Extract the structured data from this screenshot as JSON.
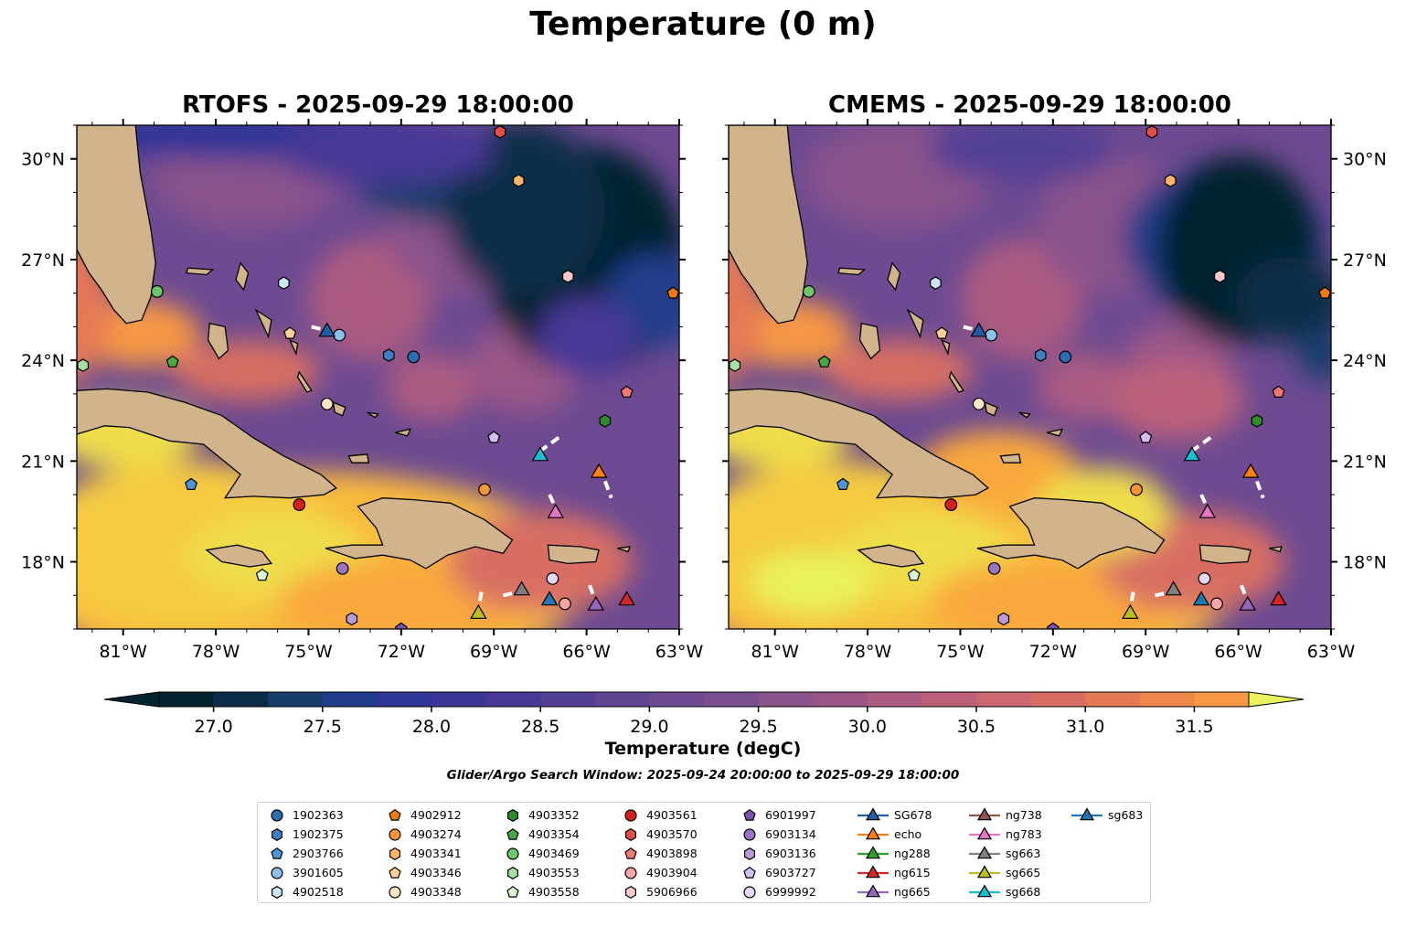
{
  "figure": {
    "title": "Temperature (0 m)",
    "search_window": "Glider/Argo Search Window: 2025-09-24 20:00:00 to 2025-09-29 18:00:00"
  },
  "chart_data": {
    "type": "heatmap",
    "variable": "Temperature",
    "depth": "0 m",
    "panels": [
      {
        "title": "RTOFS - 2025-09-29 18:00:00",
        "model": "RTOFS"
      },
      {
        "title": "CMEMS - 2025-09-29 18:00:00",
        "model": "CMEMS"
      }
    ],
    "xlim": [
      -82.5,
      -63.0
    ],
    "ylim": [
      16.0,
      31.0
    ],
    "x_ticks": [
      {
        "value": -81,
        "label": "81°W"
      },
      {
        "value": -78,
        "label": "78°W"
      },
      {
        "value": -75,
        "label": "75°W"
      },
      {
        "value": -72,
        "label": "72°W"
      },
      {
        "value": -69,
        "label": "69°W"
      },
      {
        "value": -66,
        "label": "66°W"
      },
      {
        "value": -63,
        "label": "63°W"
      }
    ],
    "y_ticks": [
      {
        "value": 30,
        "label": "30°N"
      },
      {
        "value": 27,
        "label": "27°N"
      },
      {
        "value": 24,
        "label": "24°N"
      },
      {
        "value": 21,
        "label": "21°N"
      },
      {
        "value": 18,
        "label": "18°N"
      }
    ],
    "colorbar": {
      "label": "Temperature (degC)",
      "vmin": 26.75,
      "vmax": 31.75,
      "step": 0.25,
      "extend": "both",
      "ticks": [
        {
          "value": 27.0,
          "label": "27.0"
        },
        {
          "value": 27.5,
          "label": "27.5"
        },
        {
          "value": 28.0,
          "label": "28.0"
        },
        {
          "value": 28.5,
          "label": "28.5"
        },
        {
          "value": 29.0,
          "label": "29.0"
        },
        {
          "value": 29.5,
          "label": "29.5"
        },
        {
          "value": 30.0,
          "label": "30.0"
        },
        {
          "value": 30.5,
          "label": "30.5"
        },
        {
          "value": 31.0,
          "label": "31.0"
        },
        {
          "value": 31.5,
          "label": "31.5"
        }
      ],
      "colors": [
        "#03232e",
        "#0c2d49",
        "#173d6b",
        "#203c8a",
        "#2e3596",
        "#3a3597",
        "#473896",
        "#533f94",
        "#604593",
        "#6d4a91",
        "#7a4f8f",
        "#8a538c",
        "#9a5687",
        "#ac5b81",
        "#bc607a",
        "#cc6771",
        "#d86e63",
        "#e57956",
        "#ef874b",
        "#f59745",
        "#f9a83e",
        "#f9b93c",
        "#f5cb42",
        "#efdd4c",
        "#e8f35c"
      ]
    },
    "platforms": [
      {
        "id": "1902363",
        "marker": "circle",
        "color": "#2a6db0",
        "lon": -71.6,
        "lat": 24.1
      },
      {
        "id": "1902375",
        "marker": "hexagon",
        "color": "#3f7fc4",
        "lon": -72.4,
        "lat": 24.15
      },
      {
        "id": "2903766",
        "marker": "pentagon",
        "color": "#4d93d6",
        "lon": -78.8,
        "lat": 20.3
      },
      {
        "id": "3901605",
        "marker": "circle",
        "color": "#8cbfe9",
        "lon": -74.0,
        "lat": 24.75
      },
      {
        "id": "4902518",
        "marker": "hexagon",
        "color": "#cde6f7",
        "lon": -75.8,
        "lat": 26.3
      },
      {
        "id": "4902912",
        "marker": "pentagon",
        "color": "#f07a0c",
        "lon": -63.2,
        "lat": 26.0
      },
      {
        "id": "4903274",
        "marker": "circle",
        "color": "#f7953a",
        "lon": -69.3,
        "lat": 20.15
      },
      {
        "id": "4903341",
        "marker": "hexagon",
        "color": "#fbb46a",
        "lon": -68.2,
        "lat": 29.35
      },
      {
        "id": "4903346",
        "marker": "pentagon",
        "color": "#fccf9a",
        "lon": -75.6,
        "lat": 24.8
      },
      {
        "id": "4903348",
        "marker": "circle",
        "color": "#fde5c6",
        "lon": -74.4,
        "lat": 22.7
      },
      {
        "id": "4903352",
        "marker": "hexagon",
        "color": "#2d8a2d",
        "lon": -65.4,
        "lat": 22.2
      },
      {
        "id": "4903354",
        "marker": "pentagon",
        "color": "#45aa45",
        "lon": -79.4,
        "lat": 23.95
      },
      {
        "id": "4903469",
        "marker": "circle",
        "color": "#6cc76c",
        "lon": -79.9,
        "lat": 26.05
      },
      {
        "id": "4903553",
        "marker": "hexagon",
        "color": "#a6e0a0",
        "lon": -82.3,
        "lat": 23.85
      },
      {
        "id": "4903558",
        "marker": "pentagon",
        "color": "#d8f4d0",
        "lon": -76.5,
        "lat": 17.6
      },
      {
        "id": "4903561",
        "marker": "circle",
        "color": "#d62020",
        "lon": -75.3,
        "lat": 19.7
      },
      {
        "id": "4903570",
        "marker": "hexagon",
        "color": "#e44d4d",
        "lon": -68.8,
        "lat": 30.8
      },
      {
        "id": "4903898",
        "marker": "pentagon",
        "color": "#f07878",
        "lon": -64.7,
        "lat": 23.05
      },
      {
        "id": "4903904",
        "marker": "circle",
        "color": "#f7a6a6",
        "lon": -66.7,
        "lat": 16.75
      },
      {
        "id": "5906966",
        "marker": "hexagon",
        "color": "#fccaca",
        "lon": -66.6,
        "lat": 26.5
      },
      {
        "id": "6901997",
        "marker": "pentagon",
        "color": "#7b52b0",
        "lon": -72.0,
        "lat": 16.0
      },
      {
        "id": "6903134",
        "marker": "circle",
        "color": "#9a74c4",
        "lon": -73.9,
        "lat": 17.8
      },
      {
        "id": "6903136",
        "marker": "hexagon",
        "color": "#b99ad8",
        "lon": -73.6,
        "lat": 16.3
      },
      {
        "id": "6903727",
        "marker": "pentagon",
        "color": "#d2bff0",
        "lon": -69.0,
        "lat": 21.7
      },
      {
        "id": "6999992",
        "marker": "circle",
        "color": "#e6d7f6",
        "lon": -67.1,
        "lat": 17.5
      },
      {
        "id": "SG678",
        "marker": "triangle",
        "color": "#1f5fa8",
        "lon": -74.4,
        "lat": 24.9
      },
      {
        "id": "echo",
        "marker": "triangle",
        "color": "#ff7f0e",
        "lon": -65.6,
        "lat": 20.7
      },
      {
        "id": "ng288",
        "marker": "triangle",
        "color": "#2ca02c",
        "lon": null,
        "lat": null
      },
      {
        "id": "ng615",
        "marker": "triangle",
        "color": "#d62728",
        "lon": -64.7,
        "lat": 16.9
      },
      {
        "id": "ng665",
        "marker": "triangle",
        "color": "#9467bd",
        "lon": -65.7,
        "lat": 16.75
      },
      {
        "id": "ng738",
        "marker": "triangle",
        "color": "#8c564b",
        "lon": null,
        "lat": null
      },
      {
        "id": "ng783",
        "marker": "triangle",
        "color": "#e377c2",
        "lon": -67.0,
        "lat": 19.5
      },
      {
        "id": "sg663",
        "marker": "triangle",
        "color": "#7f7f7f",
        "lon": -68.1,
        "lat": 17.2
      },
      {
        "id": "sg665",
        "marker": "triangle",
        "color": "#bcbd22",
        "lon": -69.5,
        "lat": 16.5
      },
      {
        "id": "sg668",
        "marker": "triangle",
        "color": "#17becf",
        "lon": -67.5,
        "lat": 21.2
      },
      {
        "id": "sg683",
        "marker": "triangle",
        "color": "#1f77b4",
        "lon": -67.2,
        "lat": 16.9
      }
    ]
  }
}
